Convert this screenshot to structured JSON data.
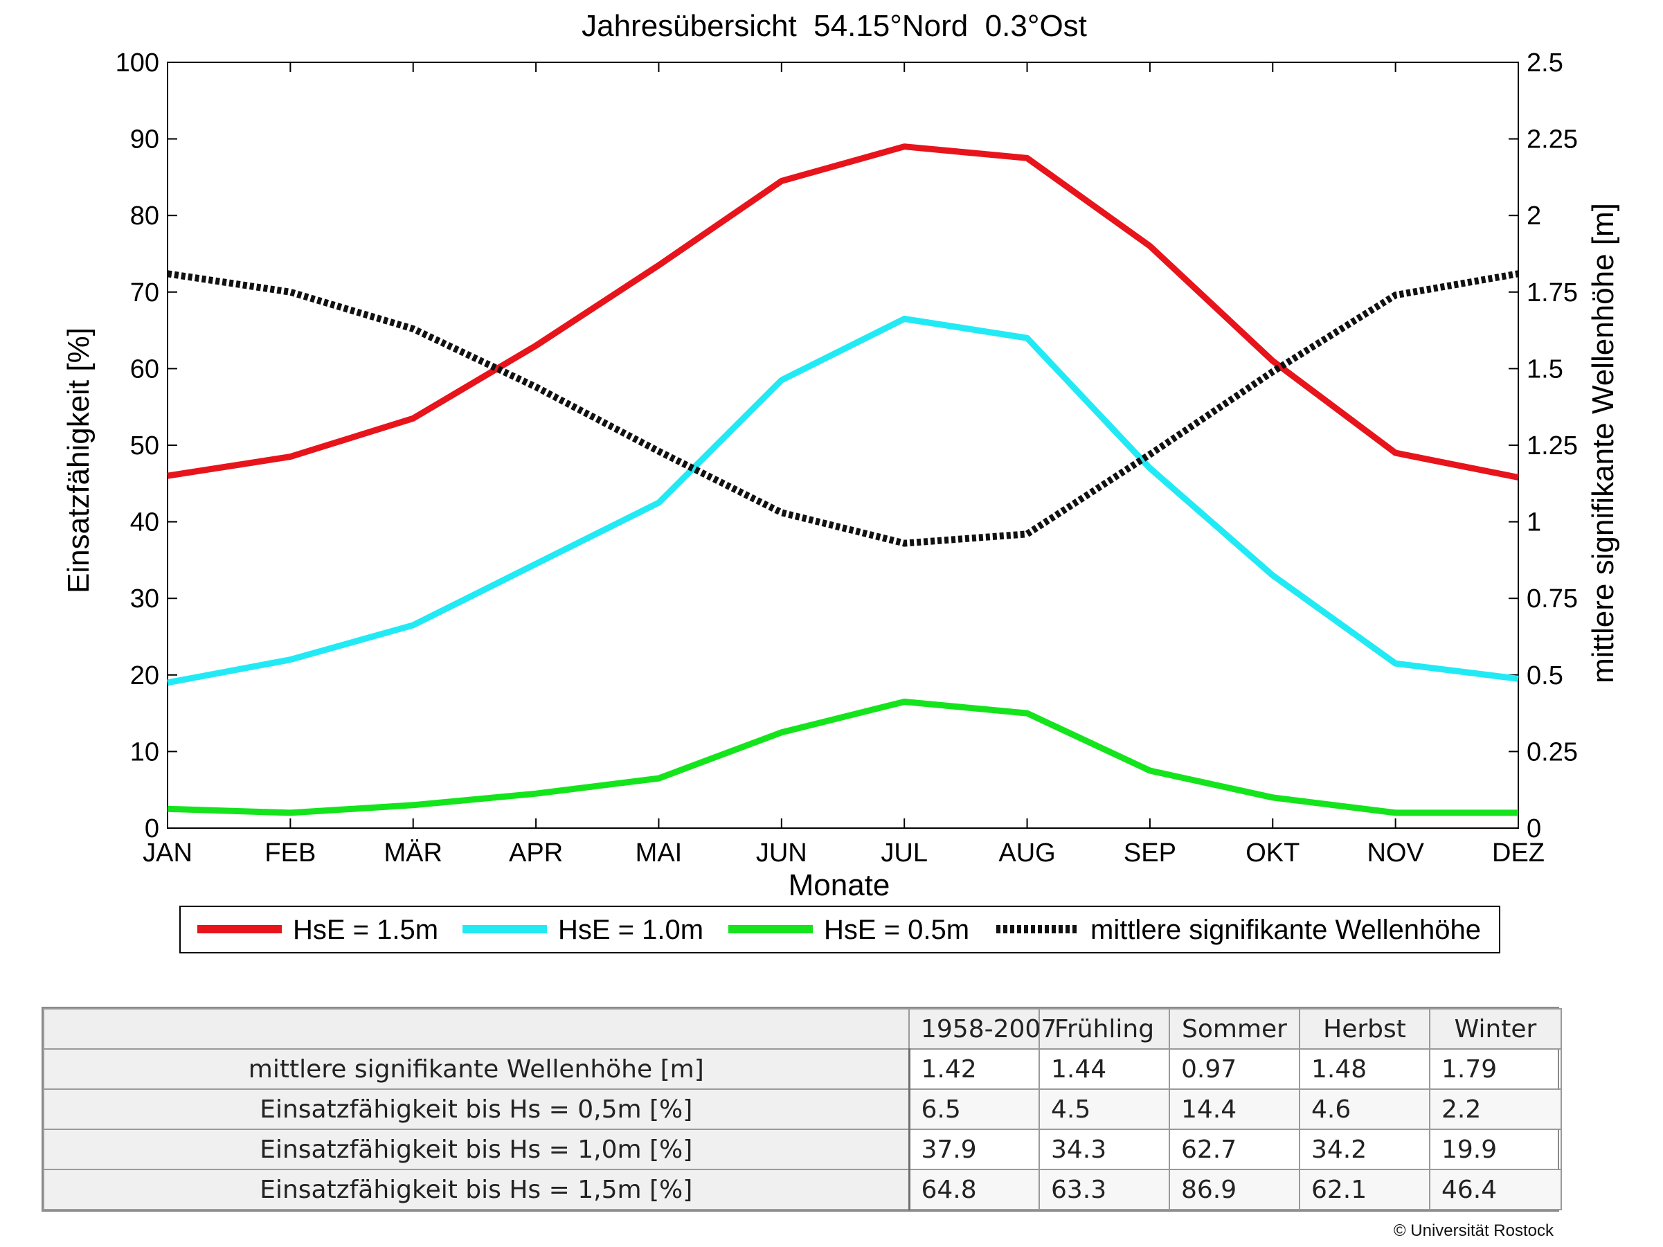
{
  "chart_data": {
    "type": "line",
    "title": "Jahresübersicht  54.15°Nord  0.3°Ost",
    "xlabel": "Monate",
    "ylabel": "Einsatzfähigkeit [%]",
    "y2label": "mittlere signifikante Wellenhöhe [m]",
    "categories": [
      "JAN",
      "FEB",
      "MÄR",
      "APR",
      "MAI",
      "JUN",
      "JUL",
      "AUG",
      "SEP",
      "OKT",
      "NOV",
      "DEZ"
    ],
    "ylim": [
      0,
      100
    ],
    "y2lim": [
      0,
      2.5
    ],
    "yticks": [
      0,
      10,
      20,
      30,
      40,
      50,
      60,
      70,
      80,
      90,
      100
    ],
    "y2ticks": [
      "0",
      "0.25",
      "0.5",
      "0.75",
      "1",
      "1.25",
      "1.5",
      "1.75",
      "2",
      "2.25",
      "2.5"
    ],
    "grid": false,
    "legend_position": "bottom",
    "series": [
      {
        "name": "HsE = 1.5m",
        "axis": "left",
        "color": "#e8141b",
        "style": "solid",
        "values": [
          46,
          48.5,
          53.5,
          63,
          73.5,
          84.5,
          89,
          87.5,
          76,
          61,
          49,
          45.8
        ]
      },
      {
        "name": "HsE = 1.0m",
        "axis": "left",
        "color": "#22eaf5",
        "style": "solid",
        "values": [
          19,
          22,
          26.5,
          34.5,
          42.5,
          58.5,
          66.5,
          64,
          47,
          33,
          21.5,
          19.5
        ]
      },
      {
        "name": "HsE = 0.5m",
        "axis": "left",
        "color": "#14e41c",
        "style": "solid",
        "values": [
          2.5,
          2,
          3,
          4.5,
          6.5,
          12.5,
          16.5,
          15,
          7.5,
          4,
          2,
          2
        ]
      },
      {
        "name": "mittlere signifikante Wellenhöhe",
        "axis": "right",
        "color": "#111111",
        "style": "dotted",
        "values": [
          1.81,
          1.75,
          1.63,
          1.44,
          1.23,
          1.03,
          0.93,
          0.96,
          1.22,
          1.49,
          1.74,
          1.81
        ]
      }
    ]
  },
  "table": {
    "headers": [
      "1958-2007",
      "Frühling",
      "Sommer",
      "Herbst",
      "Winter"
    ],
    "rows": [
      {
        "label": "mittlere signifikante Wellenhöhe [m]",
        "values": [
          "1.42",
          "1.44",
          "0.97",
          "1.48",
          "1.79"
        ]
      },
      {
        "label": "Einsatzfähigkeit bis Hs = 0,5m [%]",
        "values": [
          "6.5",
          "4.5",
          "14.4",
          "4.6",
          "2.2"
        ]
      },
      {
        "label": "Einsatzfähigkeit bis Hs = 1,0m [%]",
        "values": [
          "37.9",
          "34.3",
          "62.7",
          "34.2",
          "19.9"
        ]
      },
      {
        "label": "Einsatzfähigkeit bis Hs = 1,5m [%]",
        "values": [
          "64.8",
          "63.3",
          "86.9",
          "62.1",
          "46.4"
        ]
      }
    ]
  },
  "copyright": "© Universität Rostock"
}
